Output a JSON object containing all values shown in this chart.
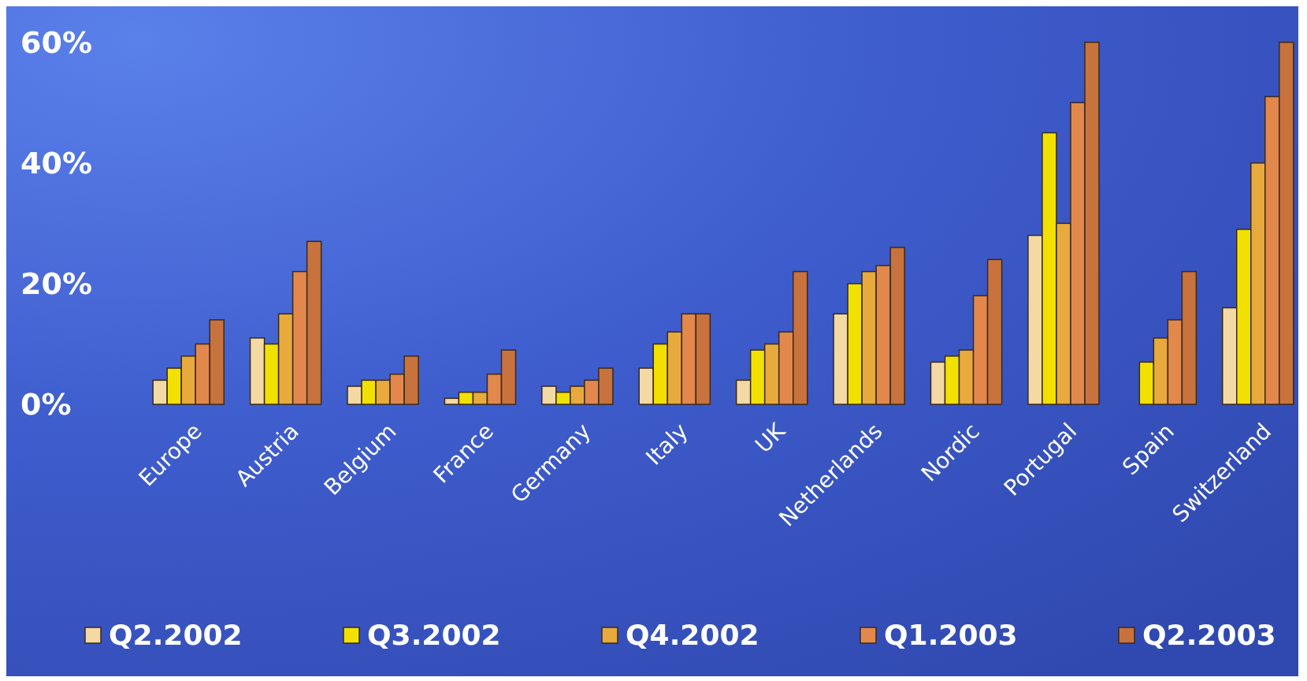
{
  "chart_data": {
    "type": "bar",
    "categories": [
      "Europe",
      "Austria",
      "Belgium",
      "France",
      "Germany",
      "Italy",
      "UK",
      "Netherlands",
      "Nordic",
      "Portugal",
      "Spain",
      "Switzerland"
    ],
    "series": [
      {
        "name": "Q2.2002",
        "color": "#f3d9a4",
        "values": [
          4,
          11,
          3,
          1,
          3,
          6,
          4,
          15,
          7,
          28,
          null,
          16
        ]
      },
      {
        "name": "Q3.2002",
        "color": "#f2e100",
        "values": [
          6,
          10,
          4,
          2,
          2,
          10,
          9,
          20,
          8,
          45,
          7,
          29
        ]
      },
      {
        "name": "Q4.2002",
        "color": "#e8aa3c",
        "values": [
          8,
          15,
          4,
          2,
          3,
          12,
          10,
          22,
          9,
          30,
          11,
          40
        ]
      },
      {
        "name": "Q1.2003",
        "color": "#e2884c",
        "values": [
          10,
          22,
          5,
          5,
          4,
          15,
          12,
          23,
          18,
          50,
          14,
          51
        ]
      },
      {
        "name": "Q2.2003",
        "color": "#c8723e",
        "values": [
          14,
          27,
          8,
          9,
          6,
          15,
          22,
          26,
          24,
          60,
          22,
          60
        ]
      }
    ],
    "ylim": [
      0,
      61
    ],
    "yticks": [
      {
        "value": 0,
        "label": "0%"
      },
      {
        "value": 20,
        "label": "20%"
      },
      {
        "value": 40,
        "label": "40%"
      },
      {
        "value": 60,
        "label": "60%"
      }
    ],
    "grid": false,
    "legend": "bottom"
  }
}
